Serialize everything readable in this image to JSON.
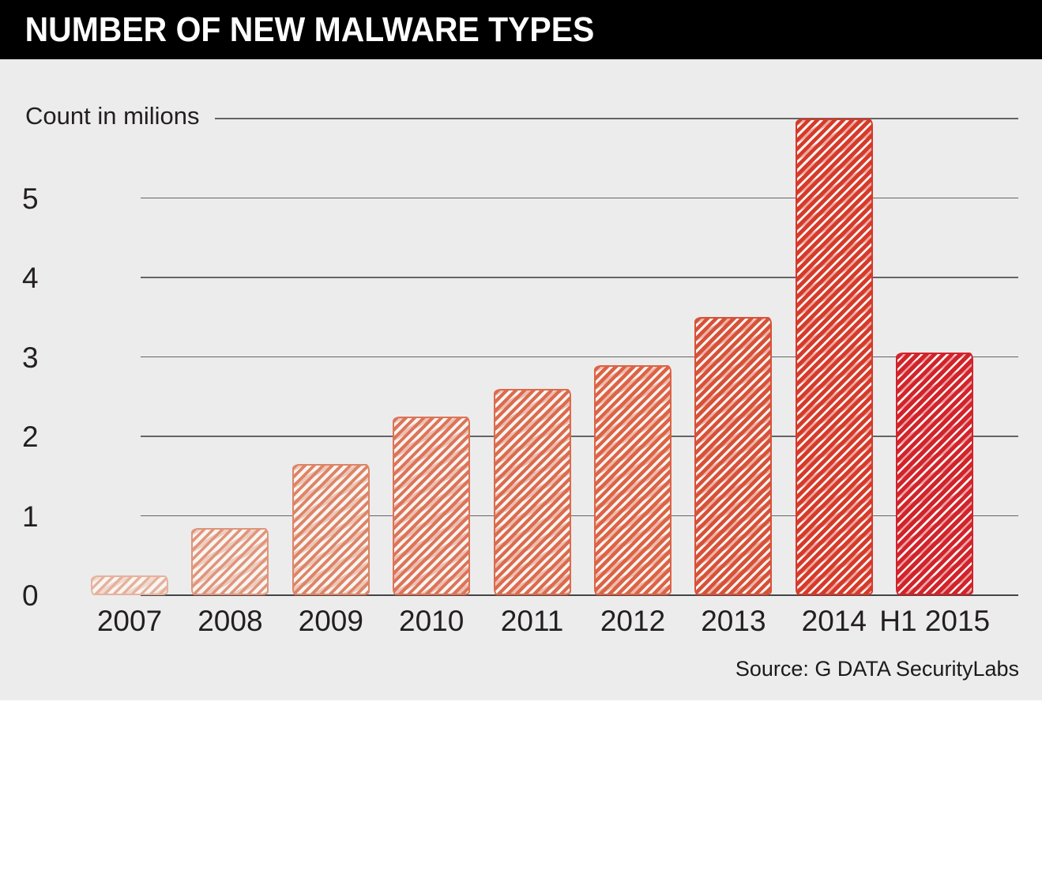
{
  "header": {
    "title": "NUMBER OF NEW MALWARE TYPES"
  },
  "axis_caption": "Count in milions",
  "source_label": "Source: G DATA SecurityLabs",
  "colors": {
    "header_bg": "#000000",
    "panel_bg": "#ececec",
    "gridline": "#4e4e50",
    "text": "#231f20",
    "bar_fill_base": "#f8f4f1"
  },
  "chart_data": {
    "type": "bar",
    "title": "NUMBER OF NEW MALWARE TYPES",
    "ylabel": "Count in milions",
    "xlabel": "",
    "categories": [
      "2007",
      "2008",
      "2009",
      "2010",
      "2011",
      "2012",
      "2013",
      "2014",
      "H1 2015"
    ],
    "values": [
      0.25,
      0.85,
      1.65,
      2.25,
      2.6,
      2.9,
      3.5,
      6.0,
      3.05
    ],
    "values_unit": "millions of new malware types",
    "bar_colors": [
      "#e5b29c",
      "#df957a",
      "#dd8466",
      "#dc7458",
      "#db6b4e",
      "#dc6345",
      "#d75138",
      "#d63a2a",
      "#d2232b"
    ],
    "y_ticks": [
      0,
      1,
      2,
      3,
      4,
      5
    ],
    "ylim": [
      0,
      6
    ],
    "grid": true,
    "legend_position": "none",
    "style": "hand-drawn hatched bars",
    "source": "Source: G DATA SecurityLabs"
  }
}
